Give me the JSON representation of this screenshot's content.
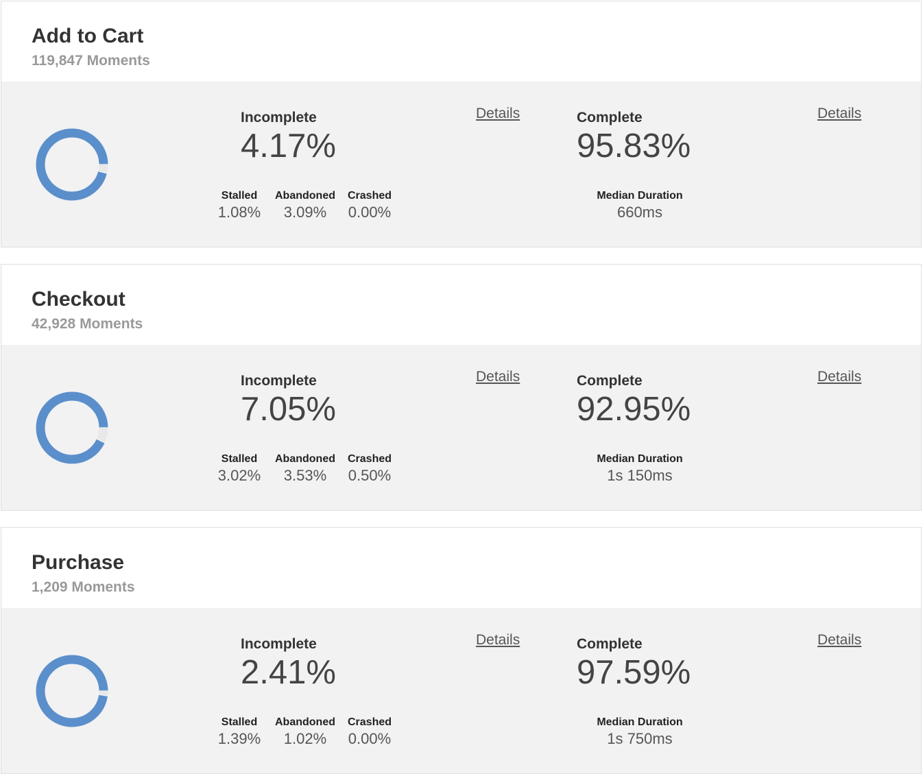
{
  "accent_color": "#5b8fcb",
  "cards": [
    {
      "title": "Add to Cart",
      "moments": "119,847 Moments",
      "incomplete_label": "Incomplete",
      "incomplete_pct": "4.17%",
      "incomplete_fraction": 0.0417,
      "complete_label": "Complete",
      "complete_pct": "95.83%",
      "details_label": "Details",
      "stats": [
        {
          "label": "Stalled",
          "value": "1.08%"
        },
        {
          "label": "Abandoned",
          "value": "3.09%"
        },
        {
          "label": "Crashed",
          "value": "0.00%"
        }
      ],
      "median_label": "Median Duration",
      "median_value": "660ms"
    },
    {
      "title": "Checkout",
      "moments": "42,928 Moments",
      "incomplete_label": "Incomplete",
      "incomplete_pct": "7.05%",
      "incomplete_fraction": 0.0705,
      "complete_label": "Complete",
      "complete_pct": "92.95%",
      "details_label": "Details",
      "stats": [
        {
          "label": "Stalled",
          "value": "3.02%"
        },
        {
          "label": "Abandoned",
          "value": "3.53%"
        },
        {
          "label": "Crashed",
          "value": "0.50%"
        }
      ],
      "median_label": "Median Duration",
      "median_value": "1s 150ms"
    },
    {
      "title": "Purchase",
      "moments": "1,209 Moments",
      "incomplete_label": "Incomplete",
      "incomplete_pct": "2.41%",
      "incomplete_fraction": 0.0241,
      "complete_label": "Complete",
      "complete_pct": "97.59%",
      "details_label": "Details",
      "stats": [
        {
          "label": "Stalled",
          "value": "1.39%"
        },
        {
          "label": "Abandoned",
          "value": "1.02%"
        },
        {
          "label": "Crashed",
          "value": "0.00%"
        }
      ],
      "median_label": "Median Duration",
      "median_value": "1s 750ms"
    }
  ]
}
